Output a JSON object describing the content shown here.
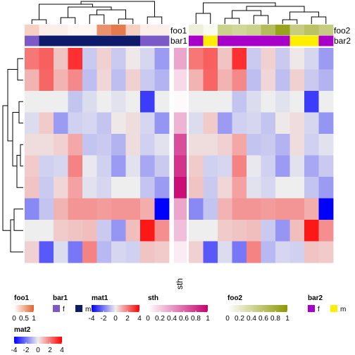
{
  "chart_data": {
    "type": "heatmap",
    "left_block": {
      "heatmap_name": "mat1",
      "n_cols": 10,
      "annotations": [
        {
          "name": "foo1",
          "values": [
            0.3,
            0.1,
            0.1,
            0.05,
            0.05,
            0.7,
            0.85,
            0.3,
            0.1,
            0.1
          ]
        },
        {
          "name": "bar1",
          "values": [
            "f",
            "m",
            "m",
            "m",
            "m",
            "m",
            "m",
            "m",
            "f",
            "f"
          ]
        }
      ],
      "matrix": [
        [
          2.0,
          2.4,
          0.7,
          3.2,
          -0.6,
          0.5,
          -0.6,
          0.1,
          -0.4,
          -1.4
        ],
        [
          1.0,
          2.3,
          1.0,
          1.7,
          -0.8,
          0.4,
          -0.8,
          0.5,
          -0.6,
          -1.0
        ],
        [
          0.0,
          0.0,
          0.0,
          -0.7,
          -0.3,
          0.0,
          -0.2,
          0.0,
          -3.0,
          0.0
        ],
        [
          -0.3,
          0.6,
          -1.4,
          -0.5,
          -0.4,
          -0.7,
          0.1,
          0.3,
          -0.4,
          -1.5
        ],
        [
          0.3,
          0.3,
          0.5,
          1.2,
          -0.7,
          -0.6,
          -1.0,
          0.3,
          -0.5,
          -0.2
        ],
        [
          0.6,
          -0.5,
          -0.4,
          1.8,
          -0.1,
          -0.5,
          -1.4,
          -0.2,
          -1.2,
          -0.6
        ],
        [
          0.7,
          -0.6,
          0.4,
          1.3,
          -0.2,
          -0.4,
          0.0,
          0.0,
          -0.7,
          -1.4
        ],
        [
          -1.7,
          -0.7,
          1.0,
          1.5,
          1.5,
          1.4,
          1.5,
          1.5,
          1.1,
          -4.0
        ],
        [
          0.0,
          0.0,
          0.6,
          0.7,
          0.8,
          -0.6,
          -1.5,
          0.8,
          3.6,
          1.6
        ],
        [
          0.5,
          -2.5,
          -0.3,
          -2.0,
          1.8,
          -0.9,
          -0.4,
          -0.5,
          0.7,
          0.6
        ]
      ]
    },
    "middle_block": {
      "heatmap_name": "sth",
      "values": [
        0.35,
        0.15,
        0.02,
        0.3,
        0.7,
        0.8,
        0.95,
        0.35,
        0.25,
        0.08
      ]
    },
    "right_block": {
      "heatmap_name": "mat2",
      "n_cols": 10,
      "annotations": [
        {
          "name": "foo2",
          "values": [
            0.15,
            0.05,
            0.45,
            0.4,
            0.45,
            0.65,
            0.9,
            0.5,
            0.6,
            0.5
          ]
        },
        {
          "name": "bar2",
          "values": [
            "f",
            "m",
            "f",
            "f",
            "f",
            "f",
            "f",
            "m",
            "m",
            "f"
          ]
        }
      ],
      "matrix": [
        [
          2.0,
          2.4,
          0.7,
          3.2,
          -0.6,
          0.5,
          -0.6,
          0.1,
          -0.4,
          -1.4
        ],
        [
          1.0,
          2.3,
          1.0,
          1.7,
          -0.8,
          0.4,
          -0.8,
          0.5,
          -0.6,
          -1.0
        ],
        [
          0.0,
          0.0,
          0.0,
          -0.7,
          -0.3,
          0.0,
          -0.2,
          0.0,
          -3.0,
          0.0
        ],
        [
          -0.3,
          0.6,
          -1.4,
          -0.5,
          -0.4,
          -0.7,
          0.1,
          0.3,
          -0.4,
          -1.5
        ],
        [
          0.3,
          0.3,
          0.5,
          1.2,
          -0.7,
          -0.6,
          -1.0,
          0.3,
          -0.5,
          -0.2
        ],
        [
          0.6,
          -0.5,
          -0.4,
          1.8,
          -0.1,
          -0.5,
          -1.4,
          -0.2,
          -1.2,
          -0.6
        ],
        [
          0.7,
          -0.6,
          0.4,
          1.3,
          -0.2,
          -0.4,
          0.0,
          0.0,
          -0.7,
          -1.4
        ],
        [
          -1.7,
          -0.7,
          1.0,
          1.5,
          1.5,
          1.4,
          1.5,
          1.5,
          1.1,
          -4.0
        ],
        [
          0.0,
          0.0,
          0.6,
          0.7,
          0.8,
          -0.6,
          -1.5,
          0.8,
          3.6,
          1.6
        ],
        [
          0.5,
          -2.5,
          -0.3,
          -2.0,
          1.8,
          -0.9,
          -0.4,
          -0.5,
          0.7,
          0.6
        ]
      ]
    },
    "side_labels": {
      "foo1": "foo1",
      "bar1": "bar1",
      "foo2": "foo2",
      "bar2": "bar2",
      "sth": "sth"
    },
    "legends": [
      {
        "title": "foo1",
        "type": "continuous",
        "ticks": [
          "0",
          "0.5",
          "1"
        ],
        "colors": [
          "#ffffff",
          "#e2622c"
        ],
        "range": [
          0,
          1
        ]
      },
      {
        "title": "bar1",
        "type": "discrete",
        "levels": [
          "f",
          "m"
        ],
        "colors": [
          "#7b59c6",
          "#0e1a6a"
        ]
      },
      {
        "title": "mat1",
        "type": "continuous",
        "ticks": [
          "-4",
          "-2",
          "0",
          "2",
          "4"
        ],
        "colors": [
          "#0000ff",
          "#eeeeee",
          "#ff0000"
        ],
        "range": [
          -4,
          4
        ]
      },
      {
        "title": "sth",
        "type": "continuous",
        "ticks": [
          "0",
          "0.2",
          "0.4",
          "0.6",
          "0.8",
          "1"
        ],
        "colors": [
          "#ffffff",
          "#c8006e"
        ],
        "range": [
          0,
          1
        ]
      },
      {
        "title": "foo2",
        "type": "continuous",
        "ticks": [
          "0",
          "0.2",
          "0.4",
          "0.6",
          "0.8",
          "1"
        ],
        "colors": [
          "#ffffff",
          "#8c9a00"
        ],
        "range": [
          0,
          1
        ]
      },
      {
        "title": "bar2",
        "type": "discrete",
        "levels": [
          "f",
          "m"
        ],
        "colors": [
          "#a800c8",
          "#ffee00"
        ]
      },
      {
        "title": "mat2",
        "type": "continuous",
        "ticks": [
          "-4",
          "-2",
          "0",
          "2",
          "4"
        ],
        "colors": [
          "#0000ff",
          "#eeeeee",
          "#ff0000"
        ],
        "range": [
          -4,
          4
        ]
      }
    ],
    "colors": {
      "low": "#0000ff",
      "mid": "#eeeeee",
      "high": "#ff0000",
      "bar1_f": "#7b59c6",
      "bar1_m": "#0e1a6a",
      "bar2_f": "#a800c8",
      "bar2_m": "#ffee00",
      "foo1_high": "#e2622c",
      "foo2_high": "#8c9a00",
      "sth_high": "#c8006e"
    }
  }
}
